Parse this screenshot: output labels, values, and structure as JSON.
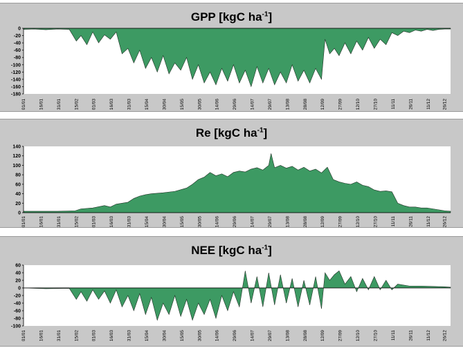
{
  "x_tick_labels": [
    "01/01",
    "16/01",
    "31/01",
    "15/02",
    "01/03",
    "16/03",
    "31/03",
    "15/04",
    "30/04",
    "15/05",
    "30/05",
    "14/06",
    "29/06",
    "14/07",
    "29/07",
    "13/08",
    "28/08",
    "12/09",
    "27/09",
    "12/10",
    "27/10",
    "11/11",
    "26/11",
    "11/12",
    "26/12"
  ],
  "colors": {
    "area_fill": "#3d9a63",
    "panel_bg": "#c8c8c8",
    "plot_bg": "#ffffff"
  },
  "chart_data": [
    {
      "type": "area",
      "title": "GPP [kgC ha",
      "title_sup": "-1",
      "title_tail": "]",
      "ylim": [
        -180,
        0
      ],
      "yticks": [
        0,
        -20,
        -40,
        -60,
        -80,
        -100,
        -120,
        -140,
        -160,
        -180
      ],
      "x_unit": "day of year",
      "x": [
        1,
        10,
        20,
        30,
        40,
        46,
        50,
        55,
        60,
        65,
        70,
        75,
        80,
        85,
        90,
        95,
        100,
        105,
        110,
        115,
        120,
        125,
        130,
        135,
        140,
        145,
        150,
        155,
        160,
        165,
        170,
        175,
        180,
        185,
        190,
        195,
        200,
        205,
        210,
        215,
        220,
        225,
        230,
        235,
        240,
        245,
        250,
        255,
        258,
        262,
        266,
        270,
        275,
        280,
        285,
        290,
        295,
        300,
        305,
        310,
        315,
        320,
        325,
        330,
        335,
        340,
        345,
        350,
        355,
        360,
        365
      ],
      "values": [
        -3,
        -2,
        -4,
        -2,
        -3,
        -35,
        -20,
        -45,
        -10,
        -40,
        -18,
        -30,
        -10,
        -70,
        -55,
        -95,
        -60,
        -110,
        -80,
        -120,
        -75,
        -125,
        -95,
        -115,
        -80,
        -140,
        -100,
        -150,
        -120,
        -155,
        -110,
        -145,
        -100,
        -150,
        -115,
        -160,
        -105,
        -150,
        -110,
        -155,
        -120,
        -150,
        -100,
        -145,
        -115,
        -150,
        -110,
        -140,
        -30,
        -70,
        -55,
        -75,
        -40,
        -70,
        -35,
        -60,
        -25,
        -55,
        -30,
        -45,
        -12,
        -20,
        -8,
        -12,
        -5,
        -8,
        -3,
        -6,
        -3,
        -2,
        -2
      ]
    },
    {
      "type": "area",
      "title": "Re [kgC ha",
      "title_sup": "-1",
      "title_tail": "]",
      "ylim": [
        0,
        140
      ],
      "yticks": [
        0,
        20,
        40,
        60,
        80,
        100,
        120,
        140
      ],
      "x_unit": "day of year",
      "x": [
        1,
        15,
        30,
        45,
        50,
        60,
        70,
        75,
        80,
        85,
        90,
        95,
        100,
        105,
        110,
        120,
        130,
        140,
        145,
        150,
        155,
        160,
        165,
        170,
        175,
        180,
        185,
        190,
        195,
        200,
        205,
        210,
        212,
        215,
        220,
        225,
        230,
        235,
        240,
        245,
        250,
        255,
        260,
        265,
        270,
        275,
        280,
        285,
        290,
        295,
        300,
        305,
        310,
        315,
        320,
        325,
        330,
        335,
        340,
        345,
        350,
        355,
        360,
        365
      ],
      "values": [
        3,
        3,
        3,
        4,
        8,
        10,
        15,
        12,
        18,
        20,
        22,
        30,
        35,
        38,
        40,
        42,
        45,
        52,
        60,
        70,
        75,
        85,
        78,
        82,
        76,
        85,
        88,
        86,
        92,
        95,
        90,
        100,
        125,
        95,
        100,
        94,
        98,
        90,
        96,
        88,
        92,
        84,
        96,
        70,
        65,
        62,
        60,
        65,
        58,
        55,
        48,
        45,
        46,
        44,
        20,
        15,
        12,
        12,
        10,
        10,
        8,
        6,
        4,
        3
      ]
    },
    {
      "type": "area",
      "title": "NEE [kgC ha",
      "title_sup": "-1",
      "title_tail": "]",
      "ylim": [
        -100,
        60
      ],
      "yticks": [
        60,
        40,
        20,
        0,
        -20,
        -40,
        -60,
        -80,
        -100
      ],
      "x_unit": "day of year",
      "x": [
        1,
        20,
        40,
        46,
        50,
        55,
        60,
        65,
        70,
        75,
        80,
        85,
        90,
        95,
        100,
        105,
        110,
        115,
        120,
        125,
        130,
        135,
        140,
        145,
        150,
        155,
        160,
        165,
        170,
        175,
        180,
        185,
        190,
        195,
        200,
        205,
        210,
        215,
        220,
        225,
        230,
        235,
        240,
        245,
        250,
        255,
        258,
        262,
        266,
        270,
        275,
        280,
        285,
        290,
        295,
        300,
        305,
        310,
        315,
        320,
        330,
        340,
        350,
        360,
        365
      ],
      "values": [
        0,
        -2,
        -1,
        -30,
        -10,
        -35,
        -5,
        -30,
        -8,
        -40,
        -5,
        -50,
        -20,
        -60,
        -15,
        -70,
        -25,
        -85,
        -40,
        -70,
        -20,
        -75,
        -30,
        -85,
        -40,
        -70,
        -30,
        -80,
        -20,
        -60,
        -10,
        -50,
        45,
        -40,
        30,
        -50,
        40,
        -45,
        35,
        -40,
        25,
        -50,
        20,
        -45,
        30,
        -55,
        40,
        20,
        35,
        45,
        10,
        30,
        -10,
        25,
        -5,
        30,
        -5,
        20,
        -5,
        10,
        5,
        5,
        4,
        3,
        2
      ]
    }
  ]
}
